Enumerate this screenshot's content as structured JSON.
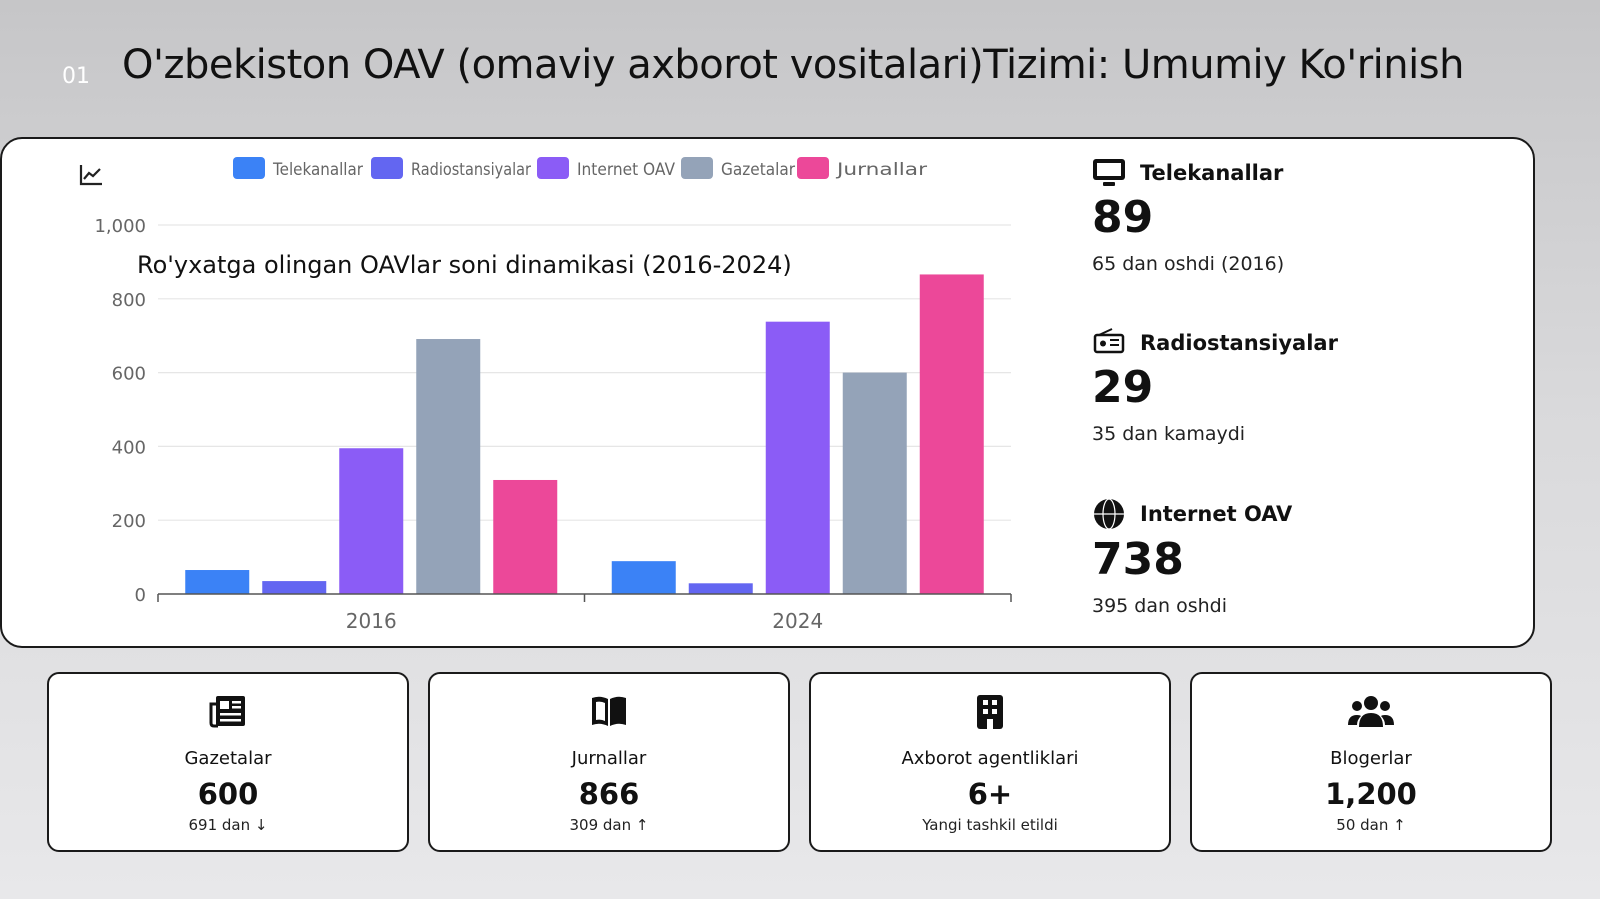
{
  "slide": {
    "number": "01",
    "title": "O'zbekiston OAV (omaviy axborot  vositalari)Tizimi: Umumiy Ko'rinish"
  },
  "colors": {
    "telekanallar": "#3b82f6",
    "radiostansiyalar": "#6366f1",
    "internet": "#8b5cf6",
    "gazetalar": "#94a3b8",
    "jurnallar": "#ec4899"
  },
  "chart_data": {
    "type": "bar",
    "title": "Ro'yxatga olingan OAVlar soni dinamikasi (2016-2024)",
    "categories": [
      "2016",
      "2024"
    ],
    "series": [
      {
        "name": "Telekanallar",
        "values": [
          65,
          89
        ]
      },
      {
        "name": "Radiostansiyalar",
        "values": [
          35,
          29
        ]
      },
      {
        "name": "Internet OAV",
        "values": [
          395,
          738
        ]
      },
      {
        "name": "Gazetalar",
        "values": [
          691,
          600
        ]
      },
      {
        "name": "Jurnallar",
        "values": [
          309,
          866
        ]
      }
    ],
    "yticks": [
      "0",
      "200",
      "400",
      "600",
      "800",
      "1,000"
    ],
    "ylim": [
      0,
      1000
    ],
    "grid": true,
    "legend_position": "top"
  },
  "stats": [
    {
      "icon": "tv-icon",
      "label": "Telekanallar",
      "value": "89",
      "sub": "65 dan oshdi (2016)"
    },
    {
      "icon": "radio-icon",
      "label": "Radiostansiyalar",
      "value": "29",
      "sub": "35 dan kamaydi"
    },
    {
      "icon": "globe-icon",
      "label": "Internet OAV",
      "value": "738",
      "sub": "395 dan oshdi"
    }
  ],
  "cards": [
    {
      "icon": "newspaper-icon",
      "label": "Gazetalar",
      "value": "600",
      "sub": "691 dan ↓"
    },
    {
      "icon": "book-icon",
      "label": "Jurnallar",
      "value": "866",
      "sub": "309 dan ↑"
    },
    {
      "icon": "building-icon",
      "label": "Axborot agentliklari",
      "value": "6+",
      "sub": "Yangi tashkil etildi"
    },
    {
      "icon": "users-icon",
      "label": "Blogerlar",
      "value": "1,200",
      "sub": "50 dan ↑"
    }
  ]
}
